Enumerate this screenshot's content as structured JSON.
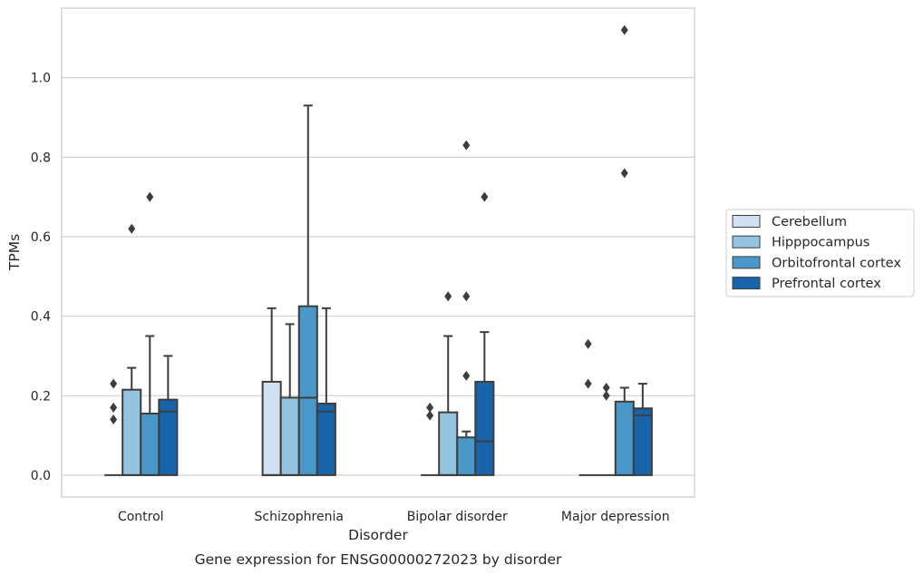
{
  "chart_data": {
    "type": "box",
    "title": "",
    "caption": "Gene expression for ENSG00000272023 by disorder",
    "xlabel": "Disorder",
    "ylabel": "TPMs",
    "ylim": [
      -0.055,
      1.175
    ],
    "yticks": [
      0.0,
      0.2,
      0.4,
      0.6,
      0.8,
      1.0
    ],
    "ytick_labels": [
      "0.0",
      "0.2",
      "0.4",
      "0.6",
      "0.8",
      "1.0"
    ],
    "grid": true,
    "legend_position": "right",
    "categories": [
      "Control",
      "Schizophrenia",
      "Bipolar disorder",
      "Major depression"
    ],
    "series": [
      {
        "name": "Cerebellum",
        "color": "#d0e1f2",
        "boxes": [
          {
            "min": 0.0,
            "q1": 0.0,
            "median": 0.0,
            "q3": 0.0,
            "max": 0.0,
            "outliers": [
              0.23,
              0.17,
              0.14
            ]
          },
          {
            "min": 0.0,
            "q1": 0.0,
            "median": 0.0,
            "q3": 0.235,
            "max": 0.42,
            "outliers": []
          },
          {
            "min": 0.0,
            "q1": 0.0,
            "median": 0.0,
            "q3": 0.0,
            "max": 0.0,
            "outliers": [
              0.17,
              0.15
            ]
          },
          {
            "min": 0.0,
            "q1": 0.0,
            "median": 0.0,
            "q3": 0.0,
            "max": 0.0,
            "outliers": [
              0.33,
              0.23
            ]
          }
        ]
      },
      {
        "name": "Hipppocampus",
        "color": "#94c4df",
        "boxes": [
          {
            "min": 0.0,
            "q1": 0.0,
            "median": 0.0,
            "q3": 0.215,
            "max": 0.27,
            "outliers": [
              0.62
            ]
          },
          {
            "min": 0.0,
            "q1": 0.0,
            "median": 0.0,
            "q3": 0.195,
            "max": 0.38,
            "outliers": []
          },
          {
            "min": 0.0,
            "q1": 0.0,
            "median": 0.0,
            "q3": 0.158,
            "max": 0.35,
            "outliers": [
              0.45
            ]
          },
          {
            "min": 0.0,
            "q1": 0.0,
            "median": 0.0,
            "q3": 0.0,
            "max": 0.0,
            "outliers": [
              0.22,
              0.2
            ]
          }
        ]
      },
      {
        "name": "Orbitofrontal cortex",
        "color": "#4a98c9",
        "boxes": [
          {
            "min": 0.0,
            "q1": 0.0,
            "median": 0.0,
            "q3": 0.155,
            "max": 0.35,
            "outliers": [
              0.7
            ]
          },
          {
            "min": 0.0,
            "q1": 0.0,
            "median": 0.195,
            "q3": 0.425,
            "max": 0.93,
            "outliers": []
          },
          {
            "min": 0.0,
            "q1": 0.0,
            "median": 0.0,
            "q3": 0.095,
            "max": 0.11,
            "outliers": [
              0.45,
              0.25,
              0.83
            ]
          },
          {
            "min": 0.0,
            "q1": 0.0,
            "median": 0.0,
            "q3": 0.185,
            "max": 0.22,
            "outliers": [
              1.12,
              0.76
            ]
          }
        ]
      },
      {
        "name": "Prefrontal cortex",
        "color": "#1764ab",
        "boxes": [
          {
            "min": 0.0,
            "q1": 0.0,
            "median": 0.16,
            "q3": 0.19,
            "max": 0.3,
            "outliers": []
          },
          {
            "min": 0.0,
            "q1": 0.0,
            "median": 0.16,
            "q3": 0.18,
            "max": 0.42,
            "outliers": []
          },
          {
            "min": 0.0,
            "q1": 0.0,
            "median": 0.085,
            "q3": 0.235,
            "max": 0.36,
            "outliers": [
              0.7
            ]
          },
          {
            "min": 0.0,
            "q1": 0.0,
            "median": 0.15,
            "q3": 0.168,
            "max": 0.23,
            "outliers": []
          }
        ]
      }
    ]
  }
}
